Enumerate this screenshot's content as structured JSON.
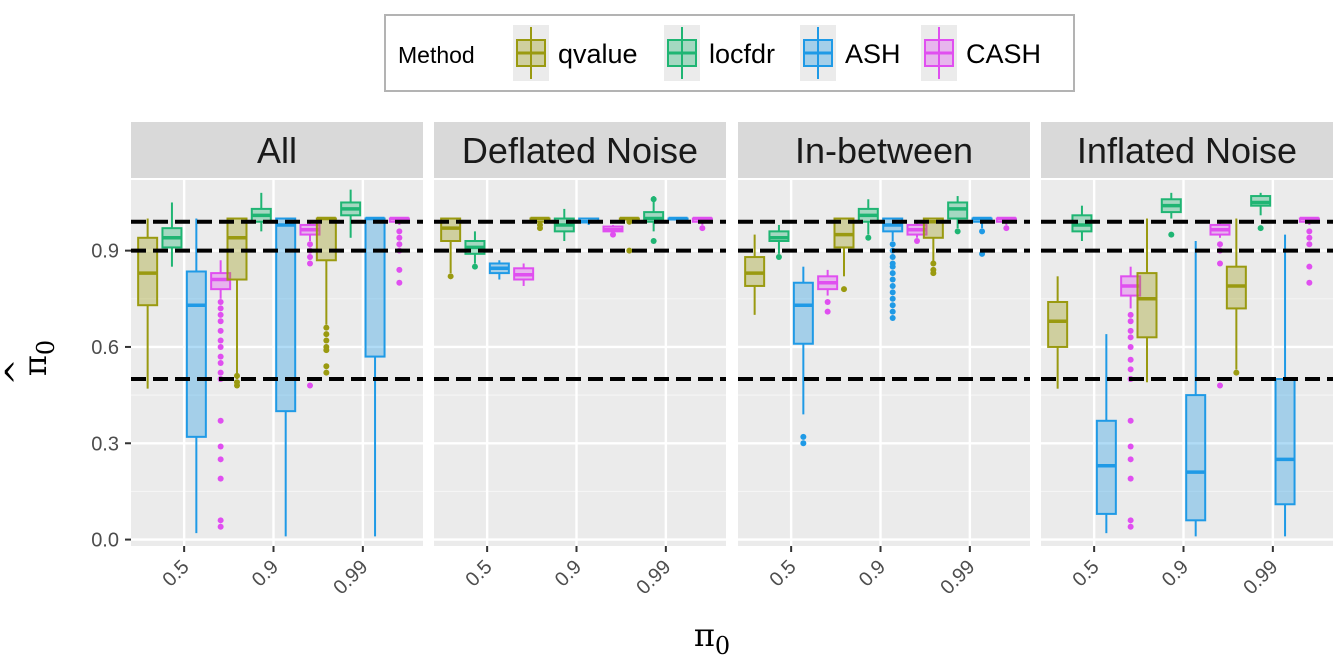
{
  "chart_data": {
    "type": "boxplot",
    "legend": {
      "title": "Method",
      "position": "top",
      "items": [
        "qvalue",
        "locfdr",
        "ASH",
        "CASH"
      ]
    },
    "colors": {
      "qvalue": "#9a9a10",
      "locfdr": "#1fb573",
      "ASH": "#1f9ae6",
      "CASH": "#e04ff0"
    },
    "facets": [
      "All",
      "Deflated Noise",
      "In-between",
      "Inflated Noise"
    ],
    "x": {
      "title": "π",
      "title_subscript": "0",
      "categories": [
        "0.5",
        "0.9",
        "0.99"
      ]
    },
    "y": {
      "title": "π",
      "title_hat": "^",
      "title_subscript": "0",
      "ylim": [
        -0.02,
        1.12
      ],
      "ticks": [
        0.0,
        0.3,
        0.6,
        0.9
      ],
      "tick_labels": [
        "0.0",
        "0.3",
        "0.6",
        "0.9"
      ]
    },
    "reference_lines": [
      0.5,
      0.9,
      0.99
    ],
    "grid": true,
    "panels": [
      {
        "facet": "All",
        "boxes": [
          {
            "cat": "0.5",
            "method": "qvalue",
            "min": 0.47,
            "q1": 0.73,
            "med": 0.83,
            "q3": 0.94,
            "max": 1.0,
            "outliers": []
          },
          {
            "cat": "0.5",
            "method": "locfdr",
            "min": 0.85,
            "q1": 0.91,
            "med": 0.94,
            "q3": 0.97,
            "max": 1.05,
            "outliers": []
          },
          {
            "cat": "0.5",
            "method": "ASH",
            "min": 0.02,
            "q1": 0.32,
            "med": 0.73,
            "q3": 0.835,
            "max": 1.0,
            "outliers": []
          },
          {
            "cat": "0.5",
            "method": "CASH",
            "min": 0.75,
            "q1": 0.78,
            "med": 0.81,
            "q3": 0.83,
            "max": 0.87,
            "outliers": [
              0.04,
              0.06,
              0.19,
              0.25,
              0.29,
              0.37,
              0.5,
              0.52,
              0.55,
              0.57,
              0.6,
              0.62,
              0.65,
              0.68,
              0.7,
              0.72,
              0.74
            ]
          },
          {
            "cat": "0.9",
            "method": "qvalue",
            "min": 0.5,
            "q1": 0.81,
            "med": 0.94,
            "q3": 1.0,
            "max": 1.0,
            "outliers": [
              0.48,
              0.49,
              0.51
            ]
          },
          {
            "cat": "0.9",
            "method": "locfdr",
            "min": 0.96,
            "q1": 0.99,
            "med": 1.01,
            "q3": 1.03,
            "max": 1.08,
            "outliers": []
          },
          {
            "cat": "0.9",
            "method": "ASH",
            "min": 0.01,
            "q1": 0.4,
            "med": 0.98,
            "q3": 1.0,
            "max": 1.0,
            "outliers": []
          },
          {
            "cat": "0.9",
            "method": "CASH",
            "min": 0.93,
            "q1": 0.95,
            "med": 0.965,
            "q3": 0.98,
            "max": 0.99,
            "outliers": [
              0.48,
              0.86,
              0.88,
              0.9,
              0.92
            ]
          },
          {
            "cat": "0.99",
            "method": "qvalue",
            "min": 0.67,
            "q1": 0.87,
            "med": 1.0,
            "q3": 1.0,
            "max": 1.0,
            "outliers": [
              0.52,
              0.54,
              0.59,
              0.6,
              0.62,
              0.64,
              0.66
            ]
          },
          {
            "cat": "0.99",
            "method": "locfdr",
            "min": 0.94,
            "q1": 1.01,
            "med": 1.03,
            "q3": 1.05,
            "max": 1.09,
            "outliers": []
          },
          {
            "cat": "0.99",
            "method": "ASH",
            "min": 0.01,
            "q1": 0.57,
            "med": 1.0,
            "q3": 1.0,
            "max": 1.0,
            "outliers": []
          },
          {
            "cat": "0.99",
            "method": "CASH",
            "min": 0.98,
            "q1": 0.99,
            "med": 1.0,
            "q3": 1.0,
            "max": 1.0,
            "outliers": [
              0.8,
              0.84,
              0.9,
              0.92,
              0.94,
              0.96
            ]
          }
        ]
      },
      {
        "facet": "Deflated Noise",
        "boxes": [
          {
            "cat": "0.5",
            "method": "qvalue",
            "min": 0.83,
            "q1": 0.93,
            "med": 0.97,
            "q3": 1.0,
            "max": 1.0,
            "outliers": [
              0.82
            ]
          },
          {
            "cat": "0.5",
            "method": "locfdr",
            "min": 0.86,
            "q1": 0.89,
            "med": 0.91,
            "q3": 0.93,
            "max": 0.96,
            "outliers": [
              0.85
            ]
          },
          {
            "cat": "0.5",
            "method": "ASH",
            "min": 0.81,
            "q1": 0.83,
            "med": 0.845,
            "q3": 0.86,
            "max": 0.87,
            "outliers": []
          },
          {
            "cat": "0.5",
            "method": "CASH",
            "min": 0.79,
            "q1": 0.81,
            "med": 0.825,
            "q3": 0.845,
            "max": 0.86,
            "outliers": []
          },
          {
            "cat": "0.9",
            "method": "qvalue",
            "min": 0.98,
            "q1": 0.99,
            "med": 1.0,
            "q3": 1.0,
            "max": 1.0,
            "outliers": [
              0.97,
              0.98
            ]
          },
          {
            "cat": "0.9",
            "method": "locfdr",
            "min": 0.93,
            "q1": 0.96,
            "med": 0.98,
            "q3": 1.0,
            "max": 1.03,
            "outliers": []
          },
          {
            "cat": "0.9",
            "method": "ASH",
            "min": 0.98,
            "q1": 0.99,
            "med": 0.99,
            "q3": 1.0,
            "max": 1.0,
            "outliers": []
          },
          {
            "cat": "0.9",
            "method": "CASH",
            "min": 0.95,
            "q1": 0.96,
            "med": 0.965,
            "q3": 0.975,
            "max": 0.98,
            "outliers": [
              0.95
            ]
          },
          {
            "cat": "0.99",
            "method": "qvalue",
            "min": 1.0,
            "q1": 1.0,
            "med": 1.0,
            "q3": 1.0,
            "max": 1.0,
            "outliers": [
              0.9,
              0.99
            ]
          },
          {
            "cat": "0.99",
            "method": "locfdr",
            "min": 0.96,
            "q1": 0.99,
            "med": 1.0,
            "q3": 1.02,
            "max": 1.07,
            "outliers": [
              0.93,
              1.06
            ]
          },
          {
            "cat": "0.99",
            "method": "ASH",
            "min": 1.0,
            "q1": 1.0,
            "med": 1.0,
            "q3": 1.0,
            "max": 1.0,
            "outliers": []
          },
          {
            "cat": "0.99",
            "method": "CASH",
            "min": 0.98,
            "q1": 0.99,
            "med": 1.0,
            "q3": 1.0,
            "max": 1.0,
            "outliers": [
              0.97
            ]
          }
        ]
      },
      {
        "facet": "In-between",
        "boxes": [
          {
            "cat": "0.5",
            "method": "qvalue",
            "min": 0.7,
            "q1": 0.79,
            "med": 0.83,
            "q3": 0.88,
            "max": 0.95,
            "outliers": []
          },
          {
            "cat": "0.5",
            "method": "locfdr",
            "min": 0.89,
            "q1": 0.93,
            "med": 0.94,
            "q3": 0.96,
            "max": 0.98,
            "outliers": [
              0.88
            ]
          },
          {
            "cat": "0.5",
            "method": "ASH",
            "min": 0.39,
            "q1": 0.61,
            "med": 0.73,
            "q3": 0.8,
            "max": 0.85,
            "outliers": [
              0.3,
              0.32
            ]
          },
          {
            "cat": "0.5",
            "method": "CASH",
            "min": 0.76,
            "q1": 0.78,
            "med": 0.8,
            "q3": 0.82,
            "max": 0.84,
            "outliers": [
              0.71,
              0.74
            ]
          },
          {
            "cat": "0.9",
            "method": "qvalue",
            "min": 0.82,
            "q1": 0.91,
            "med": 0.95,
            "q3": 1.0,
            "max": 1.0,
            "outliers": [
              0.78
            ]
          },
          {
            "cat": "0.9",
            "method": "locfdr",
            "min": 0.95,
            "q1": 0.99,
            "med": 1.01,
            "q3": 1.03,
            "max": 1.06,
            "outliers": [
              0.94
            ]
          },
          {
            "cat": "0.9",
            "method": "ASH",
            "min": 0.93,
            "q1": 0.96,
            "med": 0.98,
            "q3": 1.0,
            "max": 1.0,
            "outliers": [
              0.69,
              0.71,
              0.73,
              0.75,
              0.77,
              0.79,
              0.81,
              0.83,
              0.85,
              0.86,
              0.88,
              0.9,
              0.92
            ]
          },
          {
            "cat": "0.9",
            "method": "CASH",
            "min": 0.94,
            "q1": 0.95,
            "med": 0.965,
            "q3": 0.98,
            "max": 0.99,
            "outliers": [
              0.93
            ]
          },
          {
            "cat": "0.99",
            "method": "qvalue",
            "min": 0.86,
            "q1": 0.94,
            "med": 0.99,
            "q3": 1.0,
            "max": 1.0,
            "outliers": [
              0.83,
              0.84,
              0.86
            ]
          },
          {
            "cat": "0.99",
            "method": "locfdr",
            "min": 0.97,
            "q1": 1.0,
            "med": 1.03,
            "q3": 1.05,
            "max": 1.07,
            "outliers": [
              0.96
            ]
          },
          {
            "cat": "0.99",
            "method": "ASH",
            "min": 0.97,
            "q1": 0.99,
            "med": 1.0,
            "q3": 1.0,
            "max": 1.0,
            "outliers": [
              0.89,
              0.96
            ]
          },
          {
            "cat": "0.99",
            "method": "CASH",
            "min": 0.98,
            "q1": 0.99,
            "med": 1.0,
            "q3": 1.0,
            "max": 1.0,
            "outliers": [
              0.97
            ]
          }
        ]
      },
      {
        "facet": "Inflated Noise",
        "boxes": [
          {
            "cat": "0.5",
            "method": "qvalue",
            "min": 0.47,
            "q1": 0.6,
            "med": 0.68,
            "q3": 0.74,
            "max": 0.82,
            "outliers": []
          },
          {
            "cat": "0.5",
            "method": "locfdr",
            "min": 0.93,
            "q1": 0.96,
            "med": 0.98,
            "q3": 1.01,
            "max": 1.04,
            "outliers": []
          },
          {
            "cat": "0.5",
            "method": "ASH",
            "min": 0.02,
            "q1": 0.08,
            "med": 0.23,
            "q3": 0.37,
            "max": 0.64,
            "outliers": []
          },
          {
            "cat": "0.5",
            "method": "CASH",
            "min": 0.72,
            "q1": 0.76,
            "med": 0.79,
            "q3": 0.82,
            "max": 0.85,
            "outliers": [
              0.04,
              0.06,
              0.19,
              0.25,
              0.29,
              0.37,
              0.5,
              0.53,
              0.56,
              0.6,
              0.63,
              0.65,
              0.68,
              0.7
            ]
          },
          {
            "cat": "0.9",
            "method": "qvalue",
            "min": 0.49,
            "q1": 0.63,
            "med": 0.75,
            "q3": 0.83,
            "max": 1.0,
            "outliers": []
          },
          {
            "cat": "0.9",
            "method": "locfdr",
            "min": 1.0,
            "q1": 1.02,
            "med": 1.04,
            "q3": 1.06,
            "max": 1.08,
            "outliers": [
              0.95
            ]
          },
          {
            "cat": "0.9",
            "method": "ASH",
            "min": 0.01,
            "q1": 0.06,
            "med": 0.21,
            "q3": 0.45,
            "max": 0.93,
            "outliers": []
          },
          {
            "cat": "0.9",
            "method": "CASH",
            "min": 0.94,
            "q1": 0.95,
            "med": 0.965,
            "q3": 0.98,
            "max": 0.99,
            "outliers": [
              0.48,
              0.86,
              0.9,
              0.92
            ]
          },
          {
            "cat": "0.99",
            "method": "qvalue",
            "min": 0.53,
            "q1": 0.72,
            "med": 0.79,
            "q3": 0.85,
            "max": 1.0,
            "outliers": [
              0.52
            ]
          },
          {
            "cat": "0.99",
            "method": "locfdr",
            "min": 1.01,
            "q1": 1.04,
            "med": 1.05,
            "q3": 1.07,
            "max": 1.08,
            "outliers": [
              0.97
            ]
          },
          {
            "cat": "0.99",
            "method": "ASH",
            "min": 0.01,
            "q1": 0.11,
            "med": 0.25,
            "q3": 0.5,
            "max": 0.95,
            "outliers": []
          },
          {
            "cat": "0.99",
            "method": "CASH",
            "min": 0.98,
            "q1": 0.99,
            "med": 1.0,
            "q3": 1.0,
            "max": 1.0,
            "outliers": [
              0.8,
              0.85,
              0.92,
              0.94,
              0.96
            ]
          }
        ]
      }
    ]
  }
}
